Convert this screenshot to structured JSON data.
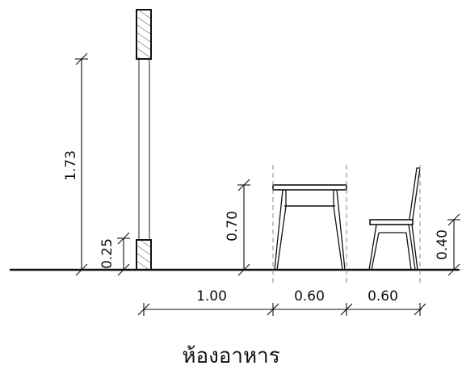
{
  "drawing": {
    "dimensions": {
      "post_height": "1.73",
      "base_height": "0.25",
      "table_height": "0.70",
      "seat_height": "0.40",
      "clearance_width": "1.00",
      "table_width": "0.60",
      "chair_width": "0.60"
    },
    "caption": "ห้องอาหาร"
  }
}
